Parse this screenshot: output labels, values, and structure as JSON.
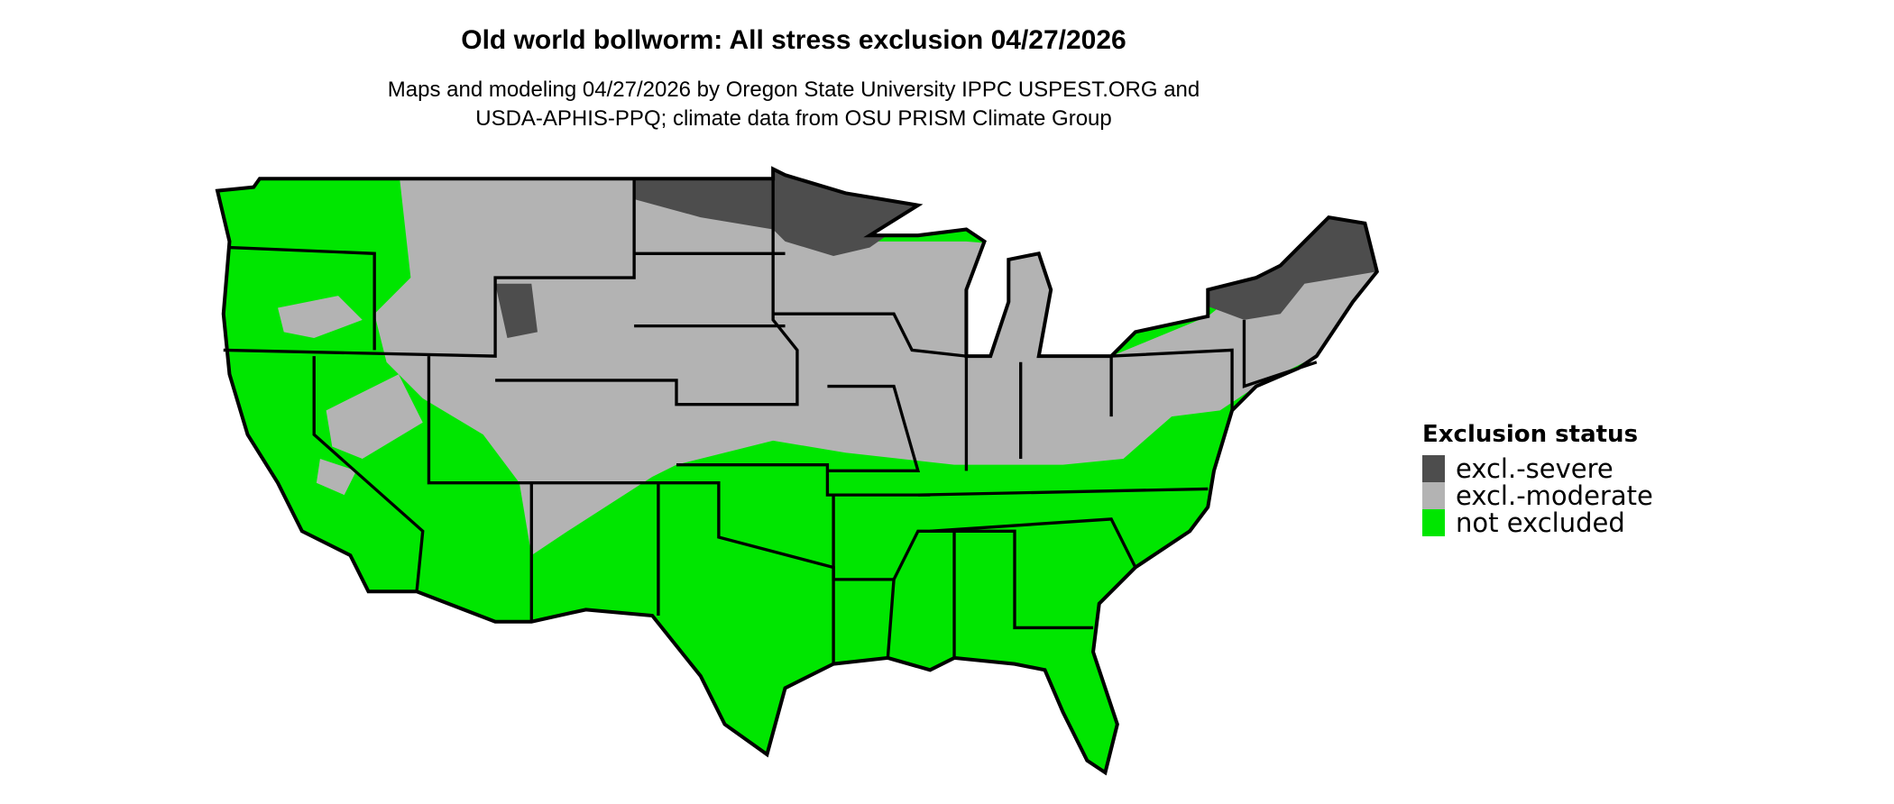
{
  "title": "Old world bollworm: All stress exclusion 04/27/2026",
  "subtitle_lines": [
    "Maps and modeling 04/27/2026 by Oregon State University IPPC USPEST.ORG and",
    "USDA-APHIS-PPQ; climate data from OSU PRISM Climate Group"
  ],
  "legend": {
    "title": "Exclusion status",
    "items": [
      {
        "label": "excl.-severe",
        "color": "#4d4d4d"
      },
      {
        "label": "excl.-moderate",
        "color": "#b3b3b3"
      },
      {
        "label": "not excluded",
        "color": "#00e600"
      }
    ]
  },
  "map_region": "Contiguous United States"
}
